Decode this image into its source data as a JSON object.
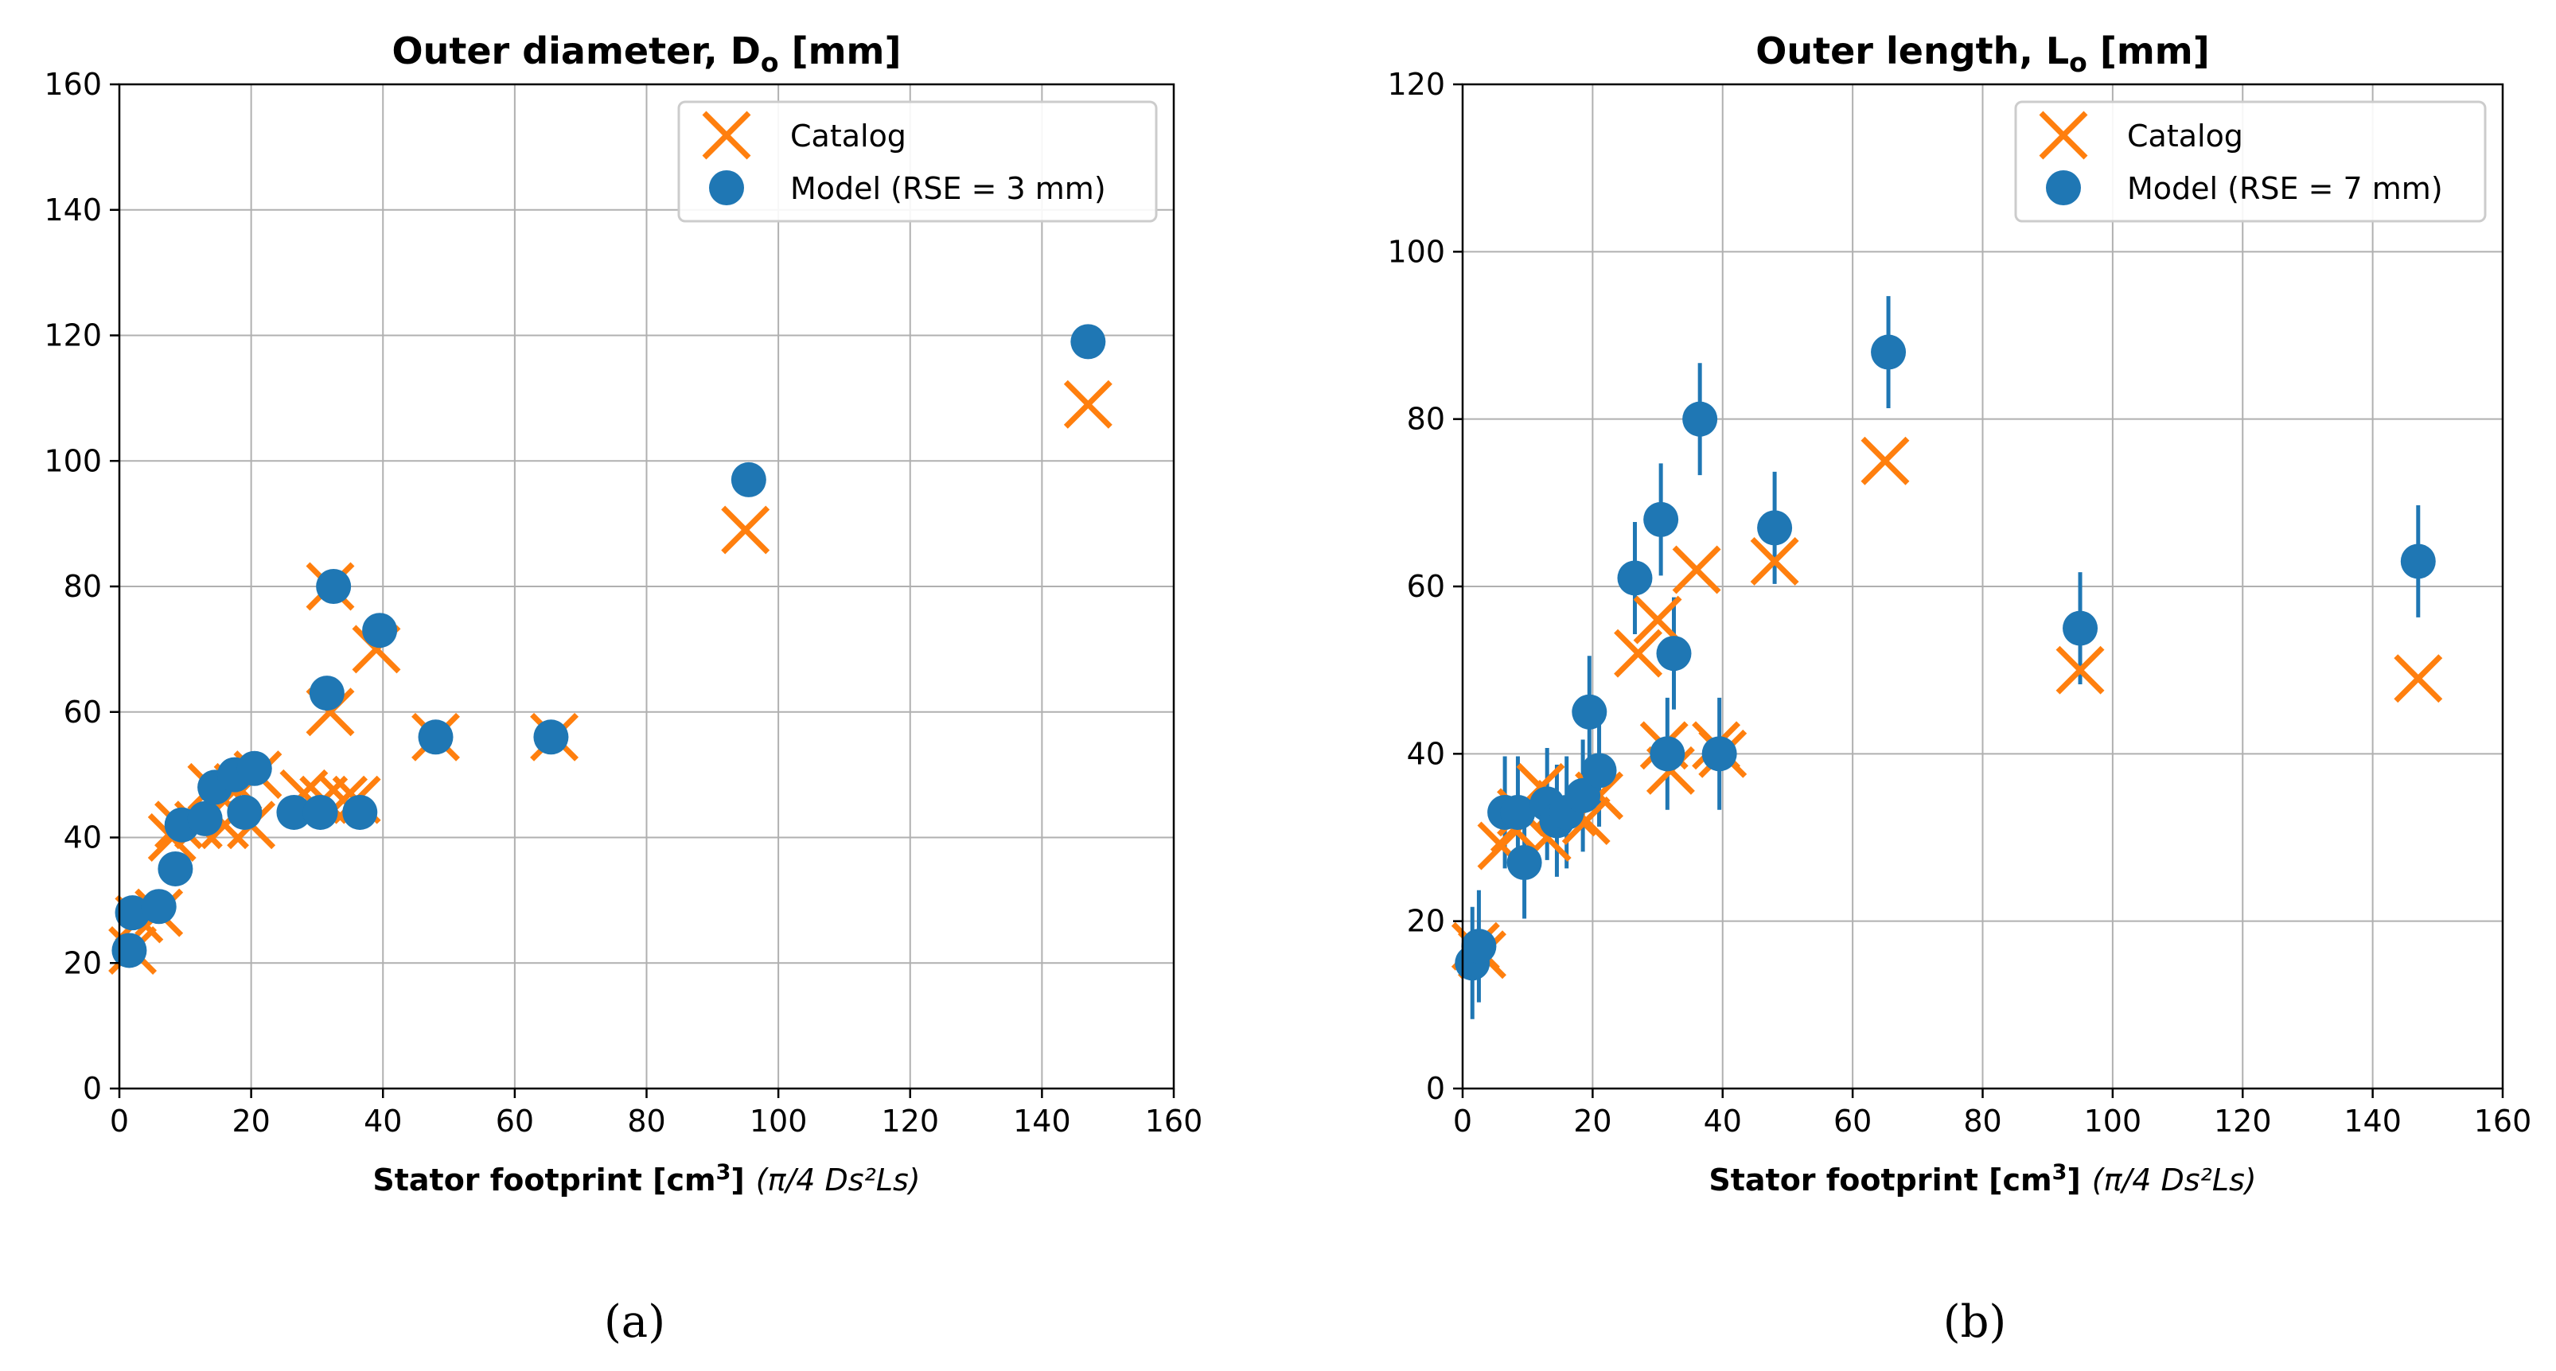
{
  "colors": {
    "catalog": "#ff7f0e",
    "model": "#1f77b4",
    "grid": "#b0b0b0",
    "axis": "#000000"
  },
  "chart_data": [
    {
      "type": "scatter",
      "panel_label": "(a)",
      "title": "Outer diameter, D",
      "title_sub": "o",
      "title_unit": " [mm]",
      "xlabel": "Stator footprint [cm",
      "xlabel_sup": "3",
      "xlabel_tail": "]",
      "xlabel_formula": "(π/4 Ds²Ls)",
      "xlim": [
        0,
        160
      ],
      "ylim": [
        0,
        160
      ],
      "xticks": [
        "0",
        "20",
        "40",
        "60",
        "80",
        "100",
        "120",
        "140",
        "160"
      ],
      "yticks": [
        "0",
        "20",
        "40",
        "60",
        "80",
        "100",
        "120",
        "140",
        "160"
      ],
      "legend_position": "top-right",
      "series": [
        {
          "name": "Catalog",
          "marker": "x",
          "points": [
            [
              2,
              22
            ],
            [
              3,
              27
            ],
            [
              6,
              28
            ],
            [
              8,
              40
            ],
            [
              9,
              42
            ],
            [
              12,
              42
            ],
            [
              14,
              48
            ],
            [
              16,
              42
            ],
            [
              18,
              48
            ],
            [
              20,
              42
            ],
            [
              21,
              50
            ],
            [
              28,
              47
            ],
            [
              31,
              46
            ],
            [
              32,
              80
            ],
            [
              32,
              60
            ],
            [
              34,
              46
            ],
            [
              36,
              46
            ],
            [
              39,
              70
            ],
            [
              48,
              56
            ],
            [
              66,
              56
            ],
            [
              95,
              89
            ],
            [
              147,
              109
            ]
          ]
        },
        {
          "name": "Model (RSE = 3 mm)",
          "marker": "o",
          "points": [
            [
              1.5,
              22
            ],
            [
              2,
              28
            ],
            [
              6,
              29
            ],
            [
              8.5,
              35
            ],
            [
              9.5,
              42
            ],
            [
              13,
              43
            ],
            [
              14.5,
              48
            ],
            [
              17.5,
              50
            ],
            [
              19,
              44
            ],
            [
              20.5,
              51
            ],
            [
              26.5,
              44
            ],
            [
              30.5,
              44
            ],
            [
              31.5,
              63
            ],
            [
              32.5,
              80
            ],
            [
              36.5,
              44
            ],
            [
              39.5,
              73
            ],
            [
              48,
              56
            ],
            [
              65.5,
              56
            ],
            [
              95.5,
              97
            ],
            [
              147,
              119
            ]
          ]
        }
      ]
    },
    {
      "type": "scatter",
      "panel_label": "(b)",
      "title": "Outer length, L",
      "title_sub": "o",
      "title_unit": " [mm]",
      "xlabel": "Stator footprint [cm",
      "xlabel_sup": "3",
      "xlabel_tail": "]",
      "xlabel_formula": "(π/4 Ds²Ls)",
      "xlim": [
        0,
        160
      ],
      "ylim": [
        0,
        120
      ],
      "xticks": [
        "0",
        "20",
        "40",
        "60",
        "80",
        "100",
        "120",
        "140",
        "160"
      ],
      "yticks": [
        "0",
        "20",
        "40",
        "60",
        "80",
        "100",
        "120"
      ],
      "legend_position": "top-right",
      "series": [
        {
          "name": "Catalog",
          "marker": "x",
          "points": [
            [
              2,
              17
            ],
            [
              3,
              16
            ],
            [
              6,
              29
            ],
            [
              8,
              31
            ],
            [
              9,
              33
            ],
            [
              12,
              36
            ],
            [
              13,
              30
            ],
            [
              15,
              34
            ],
            [
              17,
              33
            ],
            [
              19,
              32
            ],
            [
              21,
              35
            ],
            [
              27,
              52
            ],
            [
              30,
              56
            ],
            [
              31,
              41
            ],
            [
              32,
              38
            ],
            [
              36,
              62
            ],
            [
              39,
              41
            ],
            [
              40,
              40
            ],
            [
              48,
              63
            ],
            [
              65,
              75
            ],
            [
              95,
              50
            ],
            [
              147,
              49
            ]
          ]
        },
        {
          "name": "Model (RSE = 7 mm)",
          "marker": "o",
          "error": 6.7,
          "points": [
            [
              1.5,
              15
            ],
            [
              2.5,
              17
            ],
            [
              6.5,
              33
            ],
            [
              8.5,
              33
            ],
            [
              9.5,
              27
            ],
            [
              13,
              34
            ],
            [
              14.5,
              32
            ],
            [
              16,
              33
            ],
            [
              18.5,
              35
            ],
            [
              19.5,
              45
            ],
            [
              21,
              38
            ],
            [
              26.5,
              61
            ],
            [
              30.5,
              68
            ],
            [
              31.5,
              40
            ],
            [
              32.5,
              52
            ],
            [
              36.5,
              80
            ],
            [
              39.5,
              40
            ],
            [
              48,
              67
            ],
            [
              65.5,
              88
            ],
            [
              95,
              55
            ],
            [
              147,
              63
            ]
          ]
        }
      ]
    }
  ]
}
